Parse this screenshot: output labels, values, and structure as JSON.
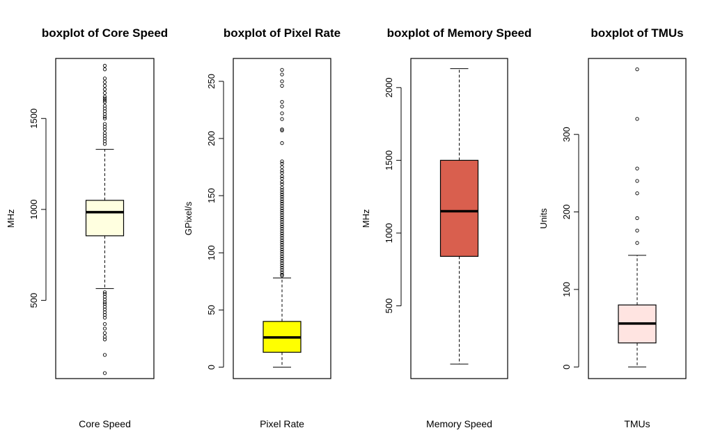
{
  "chart_data": [
    {
      "type": "boxplot",
      "title": "boxplot of Core Speed",
      "xlabel": "Core Speed",
      "ylabel": "MHz",
      "ylim": [
        70,
        1830
      ],
      "yticks": [
        500,
        1000,
        1500
      ],
      "color": "#ffffe0",
      "box": {
        "whisker_low": 565,
        "q1": 855,
        "median": 985,
        "q3": 1050,
        "whisker_high": 1330
      },
      "outliers": [
        1790,
        1770,
        1720,
        1700,
        1680,
        1660,
        1640,
        1620,
        1610,
        1600,
        1590,
        1570,
        1555,
        1540,
        1525,
        1510,
        1500,
        1470,
        1455,
        1440,
        1420,
        1405,
        1390,
        1375,
        1360,
        545,
        535,
        520,
        505,
        490,
        480,
        465,
        450,
        435,
        420,
        405,
        370,
        345,
        320,
        300,
        285,
        200,
        100
      ]
    },
    {
      "type": "boxplot",
      "title": "boxplot of Pixel Rate",
      "xlabel": "Pixel Rate",
      "ylabel": "GPixel/s",
      "ylim": [
        -10,
        270
      ],
      "yticks": [
        0,
        50,
        100,
        150,
        200,
        250
      ],
      "color": "#ffff00",
      "box": {
        "whisker_low": 0,
        "q1": 13,
        "median": 26,
        "q3": 40,
        "whisker_high": 78
      },
      "outliers": [
        260,
        256,
        250,
        246,
        232,
        228,
        222,
        217,
        208,
        207,
        196,
        180,
        178,
        175,
        172,
        170,
        167,
        165,
        162,
        160,
        157,
        155,
        153,
        151,
        149,
        147,
        145,
        143,
        141,
        139,
        137,
        135,
        133,
        131,
        129,
        127,
        125,
        123,
        121,
        119,
        117,
        115,
        113,
        111,
        109,
        107,
        105,
        103,
        101,
        99,
        97,
        95,
        93,
        91,
        89,
        87,
        85,
        83,
        81,
        80
      ]
    },
    {
      "type": "boxplot",
      "title": "boxplot of Memory Speed",
      "xlabel": "Memory Speed",
      "ylabel": "MHz",
      "ylim": [
        0,
        2200
      ],
      "yticks": [
        500,
        1000,
        1500,
        2000
      ],
      "color": "#d95f4e",
      "box": {
        "whisker_low": 100,
        "q1": 840,
        "median": 1150,
        "q3": 1500,
        "whisker_high": 2130
      },
      "outliers": []
    },
    {
      "type": "boxplot",
      "title": "boxplot of TMUs",
      "xlabel": "TMUs",
      "ylabel": "Units",
      "ylim": [
        -15,
        398
      ],
      "yticks": [
        0,
        100,
        200,
        300
      ],
      "color": "#ffe4e1",
      "box": {
        "whisker_low": 0,
        "q1": 31,
        "median": 56,
        "q3": 80,
        "whisker_high": 144
      },
      "outliers": [
        384,
        320,
        256,
        240,
        224,
        192,
        176,
        160
      ]
    }
  ]
}
